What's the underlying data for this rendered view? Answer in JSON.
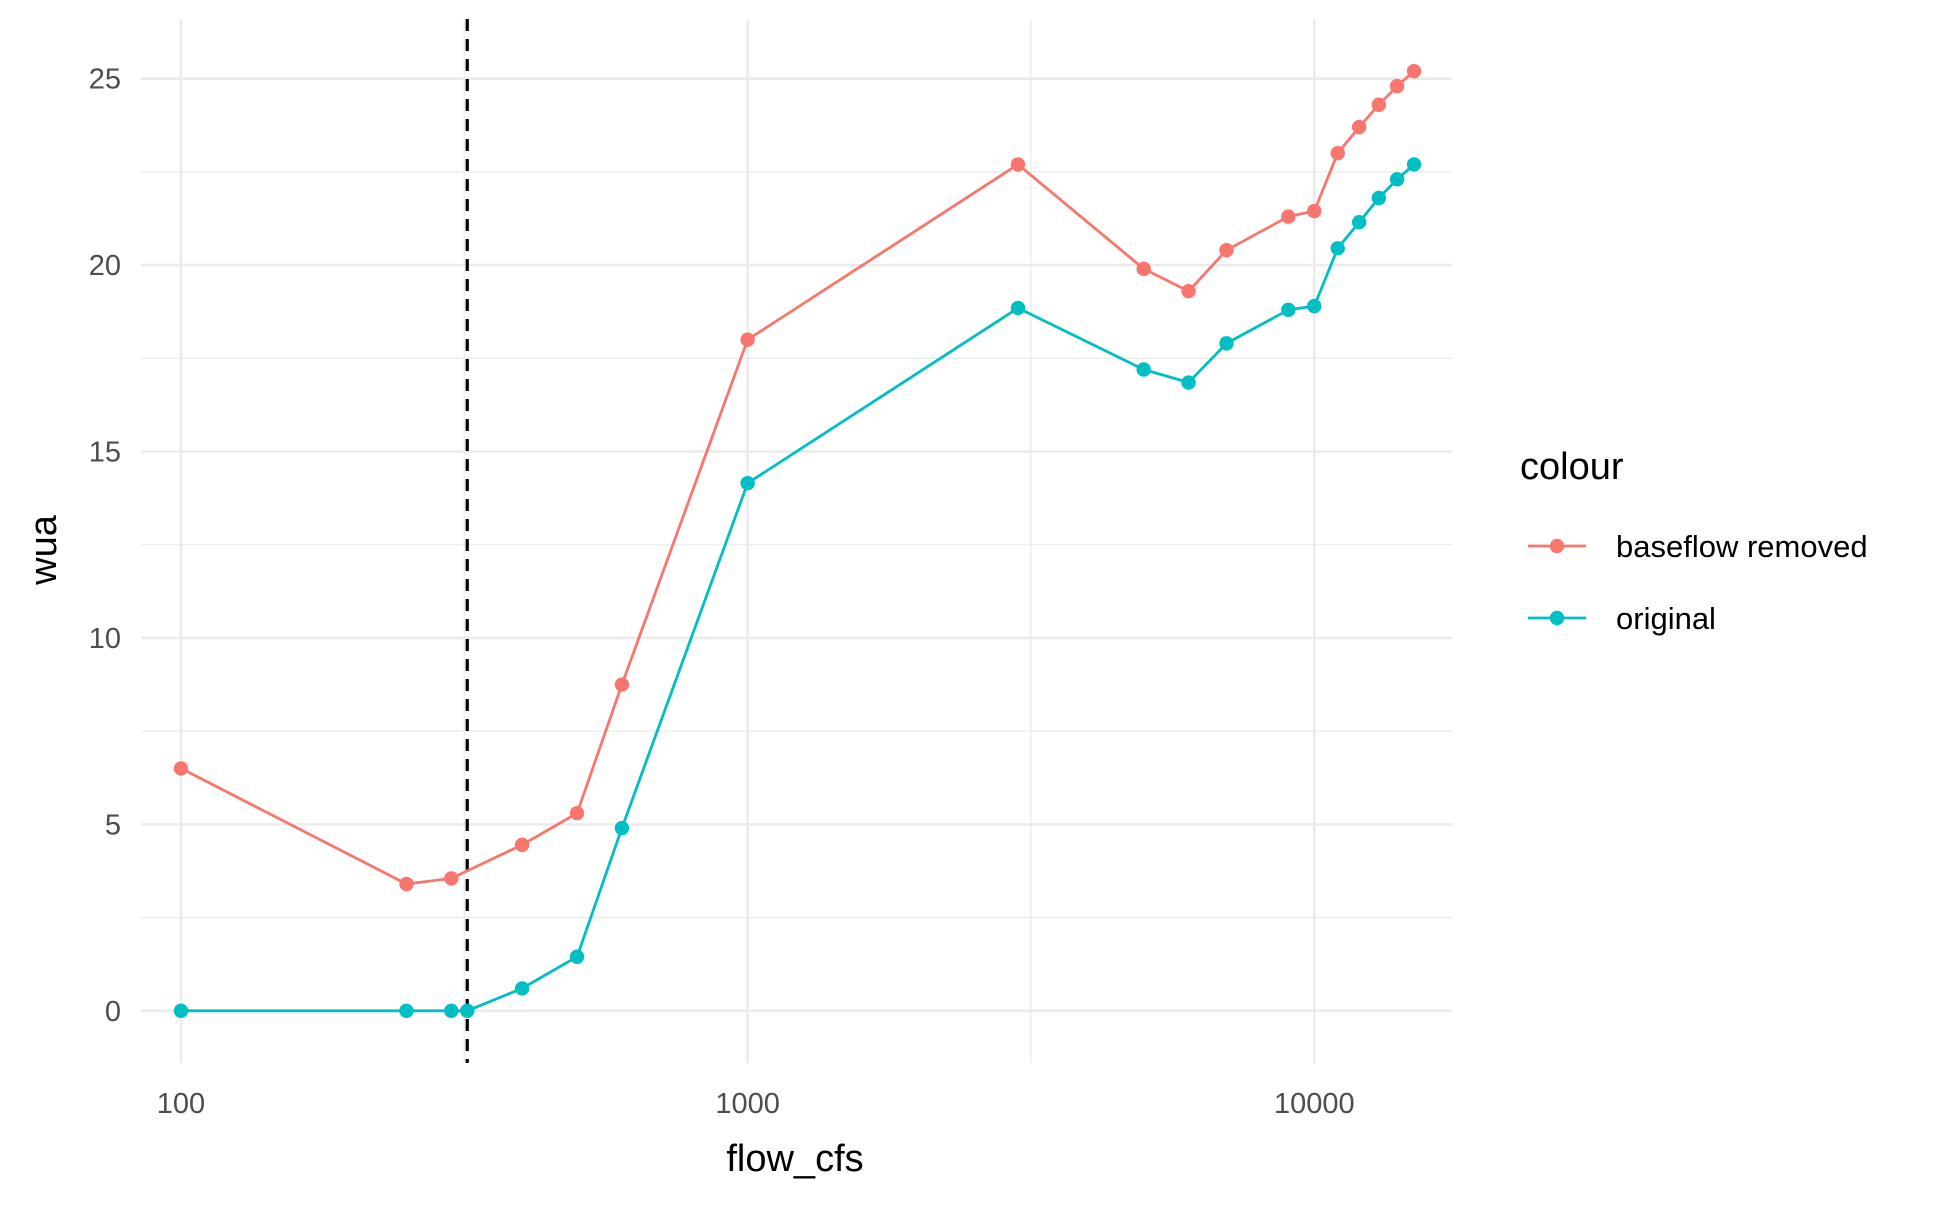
{
  "chart_data": {
    "type": "line",
    "xlabel": "flow_cfs",
    "ylabel": "wua",
    "x_scale": "log10",
    "xlim": [
      85,
      17500
    ],
    "ylim": [
      -1.4,
      26.6
    ],
    "x_ticks": [
      100,
      1000,
      10000
    ],
    "x_tick_labels": [
      "100",
      "1000",
      "10000"
    ],
    "y_ticks": [
      0,
      5,
      10,
      15,
      20,
      25
    ],
    "y_tick_labels": [
      "0",
      "5",
      "10",
      "15",
      "20",
      "25"
    ],
    "grid": true,
    "vline": {
      "x": 320,
      "style": "dashed",
      "color": "#000000"
    },
    "legend": {
      "title": "colour",
      "position": "right",
      "entries": [
        "baseflow removed",
        "original"
      ]
    },
    "series": [
      {
        "name": "baseflow removed",
        "color": "#F8766D",
        "x": [
          100,
          250,
          300,
          400,
          500,
          600,
          1000,
          3000,
          5000,
          6000,
          7000,
          9000,
          10000,
          11000,
          12000,
          13000,
          14000,
          15000
        ],
        "y": [
          6.5,
          3.4,
          3.55,
          4.45,
          5.3,
          8.75,
          18.0,
          22.7,
          19.9,
          19.3,
          20.4,
          21.3,
          21.45,
          23.0,
          23.7,
          24.3,
          24.8,
          25.2
        ]
      },
      {
        "name": "original",
        "color": "#00BFC4",
        "x": [
          100,
          250,
          300,
          320,
          400,
          500,
          600,
          1000,
          3000,
          5000,
          6000,
          7000,
          9000,
          10000,
          11000,
          12000,
          13000,
          14000,
          15000
        ],
        "y": [
          0,
          0,
          0,
          0,
          0.6,
          1.45,
          4.9,
          14.15,
          18.85,
          17.2,
          16.85,
          17.9,
          18.8,
          18.9,
          20.45,
          21.15,
          21.8,
          22.3,
          22.7
        ]
      }
    ]
  }
}
